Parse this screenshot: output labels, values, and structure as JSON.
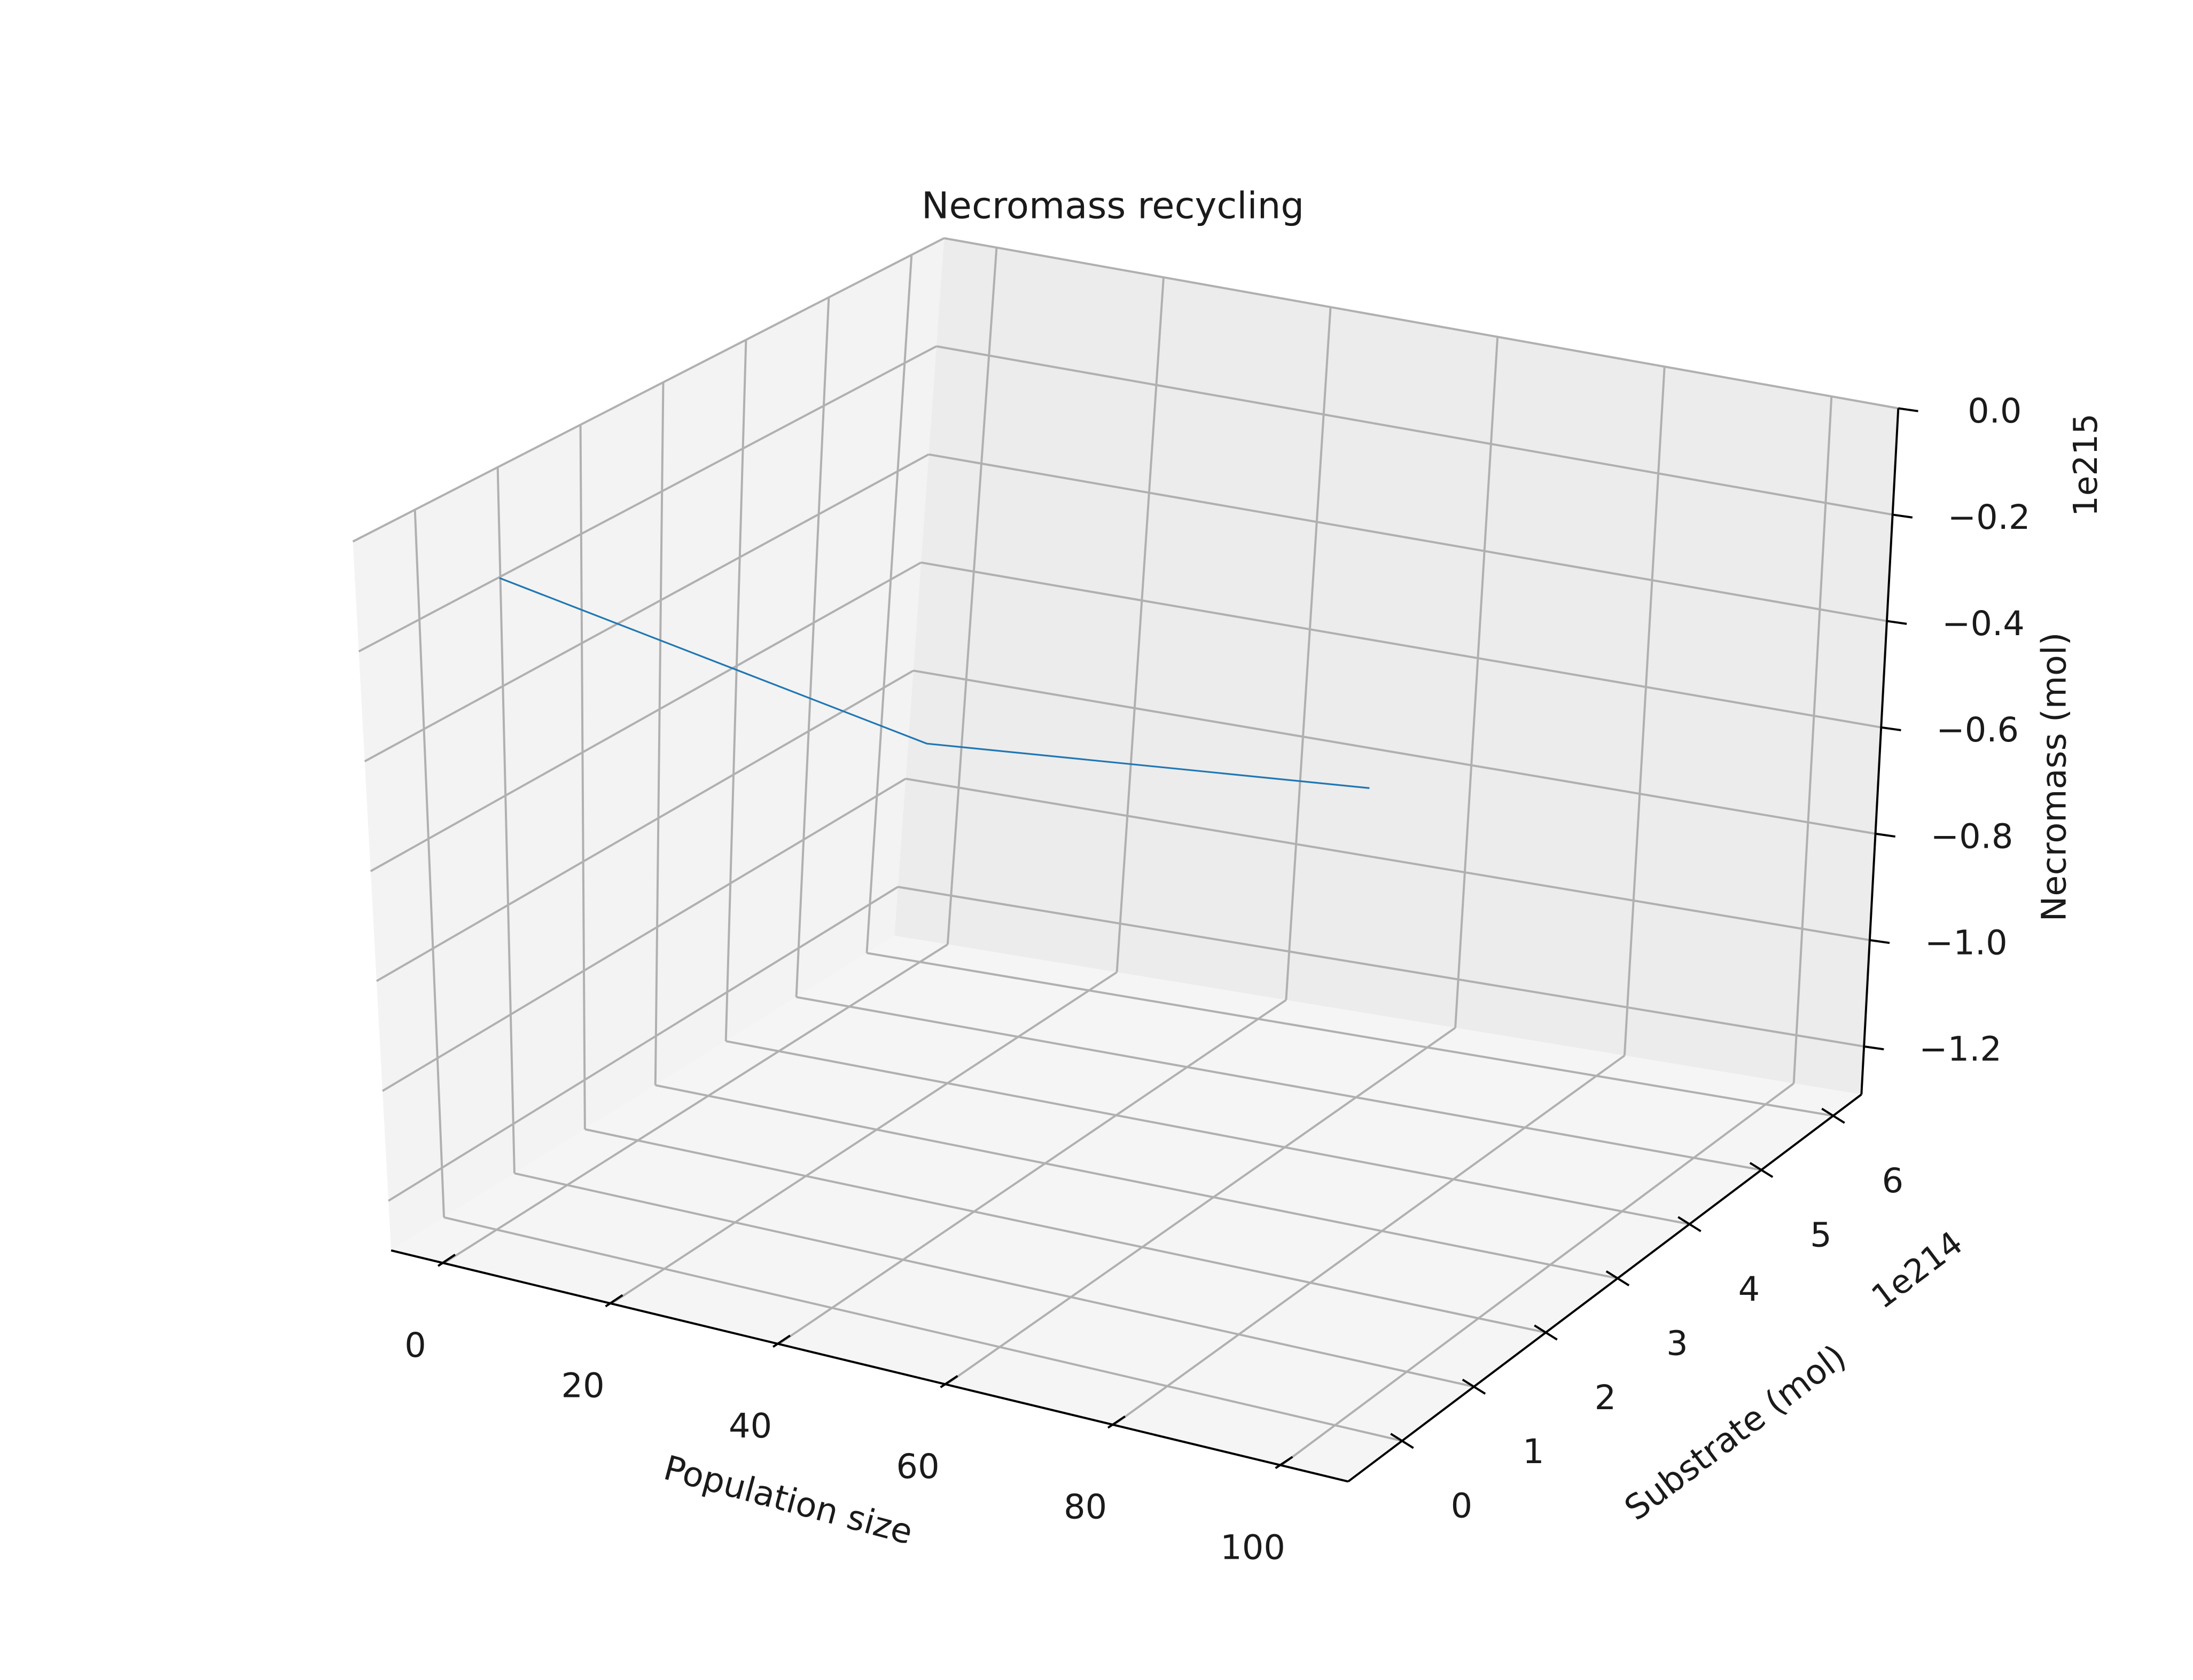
{
  "chart_data": {
    "type": "line",
    "projection": "3d",
    "title": "Necromass recycling",
    "xlabel": "Population size",
    "ylabel": "Substrate (mol)",
    "zlabel": "Necromass (mol)",
    "x_ticks": [
      "0",
      "20",
      "40",
      "60",
      "80",
      "100"
    ],
    "y_ticks": [
      "0",
      "1",
      "2",
      "3",
      "4",
      "5",
      "6"
    ],
    "z_ticks": [
      "0.0",
      "−0.2",
      "−0.4",
      "−0.6",
      "−0.8",
      "−1.0",
      "−1.2"
    ],
    "y_offset_text": "1e214",
    "z_offset_text": "1e215",
    "grid": true,
    "series": [
      {
        "color": "#1f77b4",
        "x": [
          100,
          0,
          0
        ],
        "y": [
          0,
          6.2e+214,
          0
        ],
        "z": [
          0,
          -1e+215,
          0
        ]
      }
    ]
  }
}
